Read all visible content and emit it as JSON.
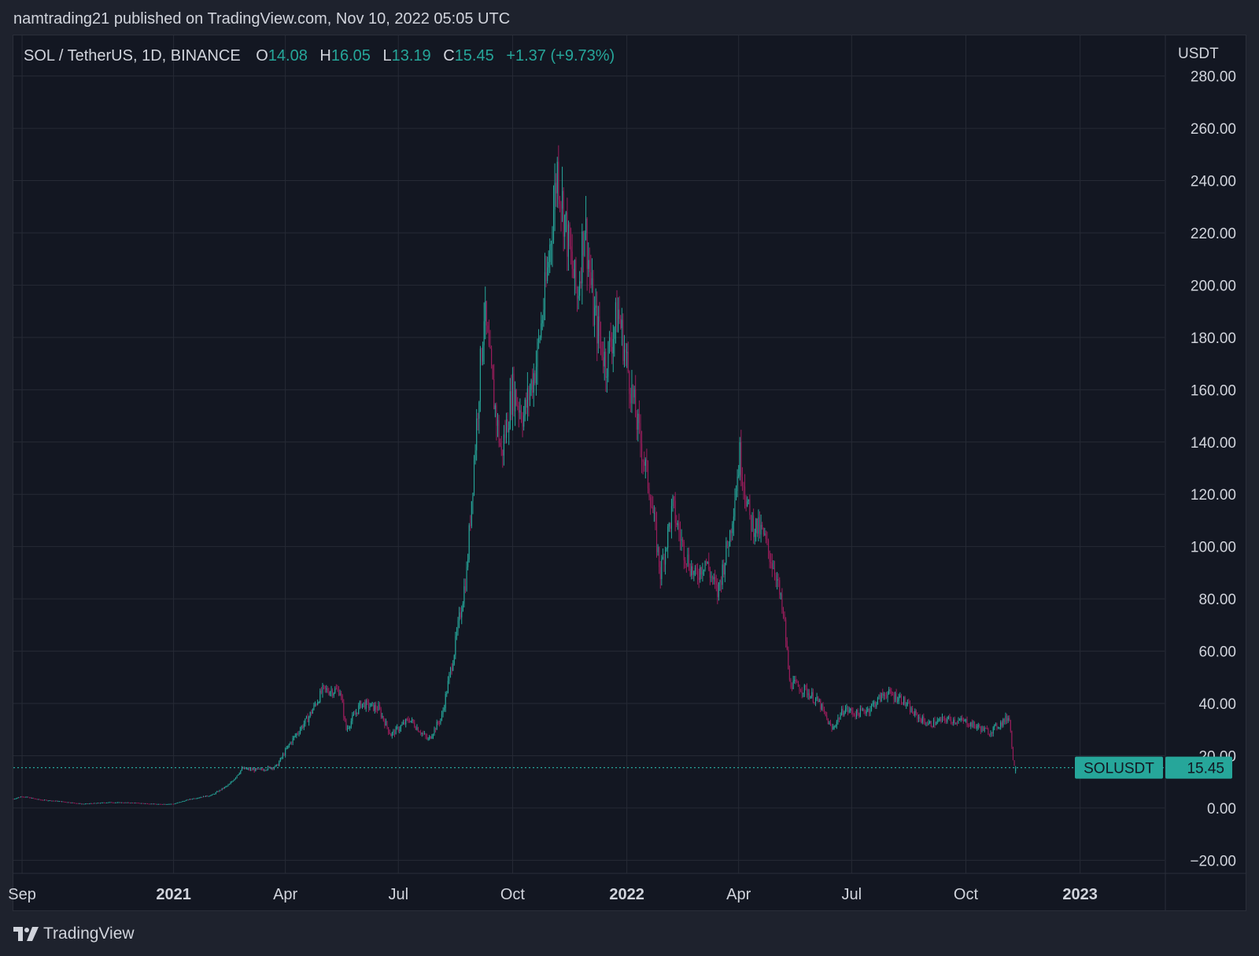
{
  "header": {
    "publish_line": "namtrading21 published on TradingView.com, Nov 10, 2022 05:05 UTC"
  },
  "legend": {
    "symbol": "SOL / TetherUS, 1D, BINANCE",
    "o_label": "O",
    "o_value": "14.08",
    "h_label": "H",
    "h_value": "16.05",
    "l_label": "L",
    "l_value": "13.19",
    "c_label": "C",
    "c_value": "15.45",
    "change": "+1.37 (+9.73%)"
  },
  "footer": {
    "brand": "TradingView",
    "logo_icon": "tradingview-logo-icon"
  },
  "colors": {
    "up": "#26a69a",
    "down": "#9c1d5c",
    "background": "#131722",
    "grid": "#262a35",
    "text": "#d1d4dc"
  },
  "chart_data": {
    "type": "candlestick",
    "currency_label": "USDT",
    "price_tag_symbol": "SOLUSDT",
    "last_price": 15.45,
    "last_price_label": "15.45",
    "ylim": [
      -25,
      285
    ],
    "y_ticks": [
      {
        "value": 280,
        "label": "280.00"
      },
      {
        "value": 260,
        "label": "260.00"
      },
      {
        "value": 240,
        "label": "240.00"
      },
      {
        "value": 220,
        "label": "220.00"
      },
      {
        "value": 200,
        "label": "200.00"
      },
      {
        "value": 180,
        "label": "180.00"
      },
      {
        "value": 160,
        "label": "160.00"
      },
      {
        "value": 140,
        "label": "140.00"
      },
      {
        "value": 120,
        "label": "120.00"
      },
      {
        "value": 100,
        "label": "100.00"
      },
      {
        "value": 80,
        "label": "80.00"
      },
      {
        "value": 60,
        "label": "60.00"
      },
      {
        "value": 40,
        "label": "40.00"
      },
      {
        "value": 20,
        "label": "20.00"
      },
      {
        "value": 0,
        "label": "0.00"
      },
      {
        "value": -20,
        "label": "−20.00"
      }
    ],
    "x_ticks": [
      {
        "date": "2020-09-01",
        "label": "Sep",
        "bold": false
      },
      {
        "date": "2021-01-01",
        "label": "2021",
        "bold": true
      },
      {
        "date": "2021-04-01",
        "label": "Apr",
        "bold": false
      },
      {
        "date": "2021-07-01",
        "label": "Jul",
        "bold": false
      },
      {
        "date": "2021-10-01",
        "label": "Oct",
        "bold": false
      },
      {
        "date": "2022-01-01",
        "label": "2022",
        "bold": true
      },
      {
        "date": "2022-04-01",
        "label": "Apr",
        "bold": false
      },
      {
        "date": "2022-07-01",
        "label": "Jul",
        "bold": false
      },
      {
        "date": "2022-10-01",
        "label": "Oct",
        "bold": false
      },
      {
        "date": "2023-01-01",
        "label": "2023",
        "bold": true
      }
    ],
    "x_range": [
      "2020-08-25",
      "2023-03-10"
    ],
    "close_series": [
      {
        "date": "2020-08-25",
        "close": 3.5
      },
      {
        "date": "2020-09-01",
        "close": 4.5
      },
      {
        "date": "2020-09-15",
        "close": 3.2
      },
      {
        "date": "2020-10-01",
        "close": 2.6
      },
      {
        "date": "2020-10-20",
        "close": 1.6
      },
      {
        "date": "2020-11-10",
        "close": 2.2
      },
      {
        "date": "2020-12-01",
        "close": 2.0
      },
      {
        "date": "2020-12-20",
        "close": 1.5
      },
      {
        "date": "2021-01-01",
        "close": 1.6
      },
      {
        "date": "2021-01-15",
        "close": 3.5
      },
      {
        "date": "2021-02-01",
        "close": 5.0
      },
      {
        "date": "2021-02-15",
        "close": 9.0
      },
      {
        "date": "2021-02-25",
        "close": 15.0
      },
      {
        "date": "2021-03-10",
        "close": 14.5
      },
      {
        "date": "2021-03-25",
        "close": 16.0
      },
      {
        "date": "2021-04-05",
        "close": 25.0
      },
      {
        "date": "2021-04-20",
        "close": 35.0
      },
      {
        "date": "2021-05-01",
        "close": 45.0
      },
      {
        "date": "2021-05-15",
        "close": 45.0
      },
      {
        "date": "2021-05-20",
        "close": 30.0
      },
      {
        "date": "2021-06-01",
        "close": 40.0
      },
      {
        "date": "2021-06-15",
        "close": 38.0
      },
      {
        "date": "2021-06-25",
        "close": 28.0
      },
      {
        "date": "2021-07-10",
        "close": 34.0
      },
      {
        "date": "2021-07-25",
        "close": 26.0
      },
      {
        "date": "2021-08-05",
        "close": 35.0
      },
      {
        "date": "2021-08-15",
        "close": 60.0
      },
      {
        "date": "2021-08-25",
        "close": 90.0
      },
      {
        "date": "2021-09-01",
        "close": 140.0
      },
      {
        "date": "2021-09-08",
        "close": 190.0
      },
      {
        "date": "2021-09-15",
        "close": 160.0
      },
      {
        "date": "2021-09-22",
        "close": 135.0
      },
      {
        "date": "2021-10-01",
        "close": 160.0
      },
      {
        "date": "2021-10-10",
        "close": 150.0
      },
      {
        "date": "2021-10-20",
        "close": 170.0
      },
      {
        "date": "2021-10-28",
        "close": 200.0
      },
      {
        "date": "2021-11-06",
        "close": 245.0
      },
      {
        "date": "2021-11-15",
        "close": 215.0
      },
      {
        "date": "2021-11-22",
        "close": 195.0
      },
      {
        "date": "2021-11-28",
        "close": 225.0
      },
      {
        "date": "2021-12-05",
        "close": 190.0
      },
      {
        "date": "2021-12-15",
        "close": 170.0
      },
      {
        "date": "2021-12-25",
        "close": 190.0
      },
      {
        "date": "2022-01-01",
        "close": 170.0
      },
      {
        "date": "2022-01-10",
        "close": 145.0
      },
      {
        "date": "2022-01-20",
        "close": 120.0
      },
      {
        "date": "2022-01-28",
        "close": 90.0
      },
      {
        "date": "2022-02-07",
        "close": 115.0
      },
      {
        "date": "2022-02-15",
        "close": 100.0
      },
      {
        "date": "2022-02-25",
        "close": 88.0
      },
      {
        "date": "2022-03-05",
        "close": 95.0
      },
      {
        "date": "2022-03-15",
        "close": 82.0
      },
      {
        "date": "2022-03-25",
        "close": 105.0
      },
      {
        "date": "2022-04-02",
        "close": 135.0
      },
      {
        "date": "2022-04-10",
        "close": 110.0
      },
      {
        "date": "2022-04-20",
        "close": 105.0
      },
      {
        "date": "2022-05-01",
        "close": 90.0
      },
      {
        "date": "2022-05-08",
        "close": 70.0
      },
      {
        "date": "2022-05-12",
        "close": 48.0
      },
      {
        "date": "2022-05-25",
        "close": 45.0
      },
      {
        "date": "2022-06-05",
        "close": 40.0
      },
      {
        "date": "2022-06-15",
        "close": 30.0
      },
      {
        "date": "2022-06-25",
        "close": 38.0
      },
      {
        "date": "2022-07-05",
        "close": 36.0
      },
      {
        "date": "2022-07-15",
        "close": 38.0
      },
      {
        "date": "2022-07-28",
        "close": 44.0
      },
      {
        "date": "2022-08-10",
        "close": 42.0
      },
      {
        "date": "2022-08-20",
        "close": 36.0
      },
      {
        "date": "2022-09-01",
        "close": 32.0
      },
      {
        "date": "2022-09-15",
        "close": 34.0
      },
      {
        "date": "2022-10-01",
        "close": 33.0
      },
      {
        "date": "2022-10-20",
        "close": 29.0
      },
      {
        "date": "2022-11-05",
        "close": 35.0
      },
      {
        "date": "2022-11-08",
        "close": 18.0
      },
      {
        "date": "2022-11-10",
        "close": 15.45
      }
    ]
  }
}
